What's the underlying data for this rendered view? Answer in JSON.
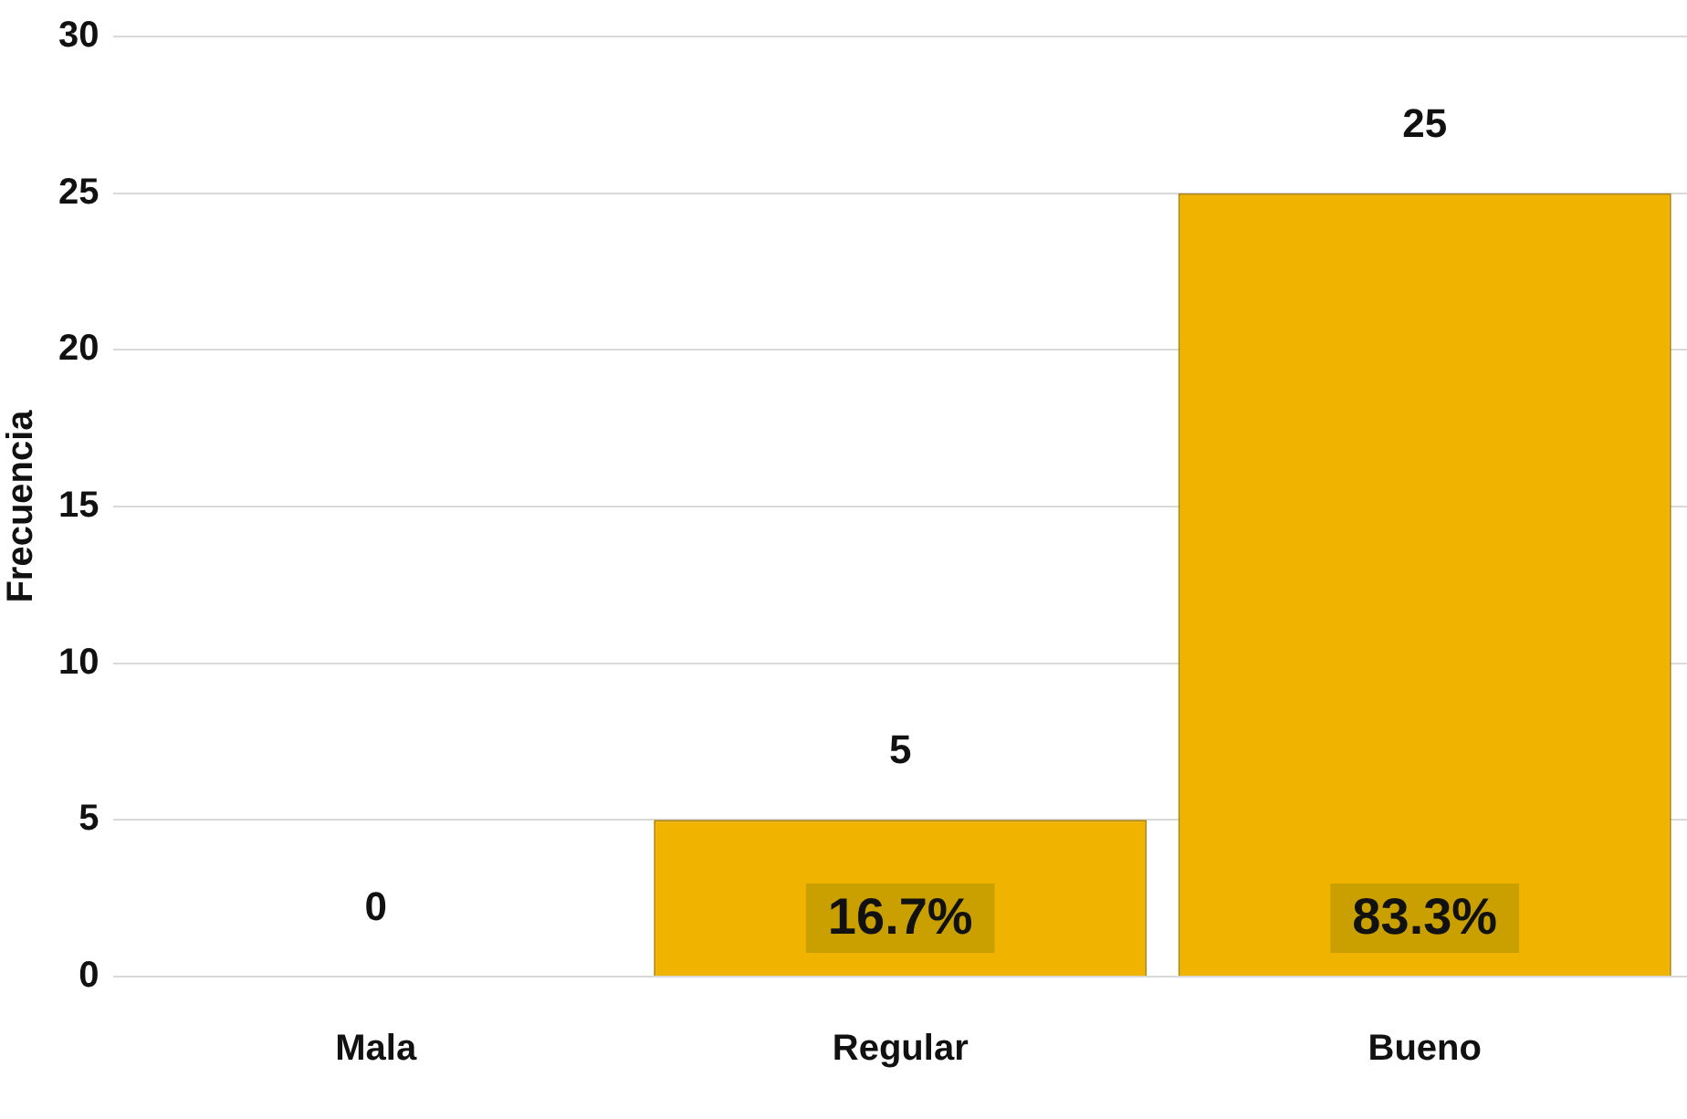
{
  "chart_data": {
    "type": "bar",
    "ylabel": "Frecuencia",
    "categories": [
      "Mala",
      "Regular",
      "Bueno"
    ],
    "values": [
      0,
      5,
      25
    ],
    "color": "#f0b400",
    "ylim": [
      0,
      30
    ],
    "yticks": [
      0,
      5,
      10,
      15,
      20,
      25,
      30
    ],
    "grid": "y",
    "data_labels": true,
    "legend": false,
    "annotations": [
      "16.7%",
      "83.3%"
    ]
  }
}
